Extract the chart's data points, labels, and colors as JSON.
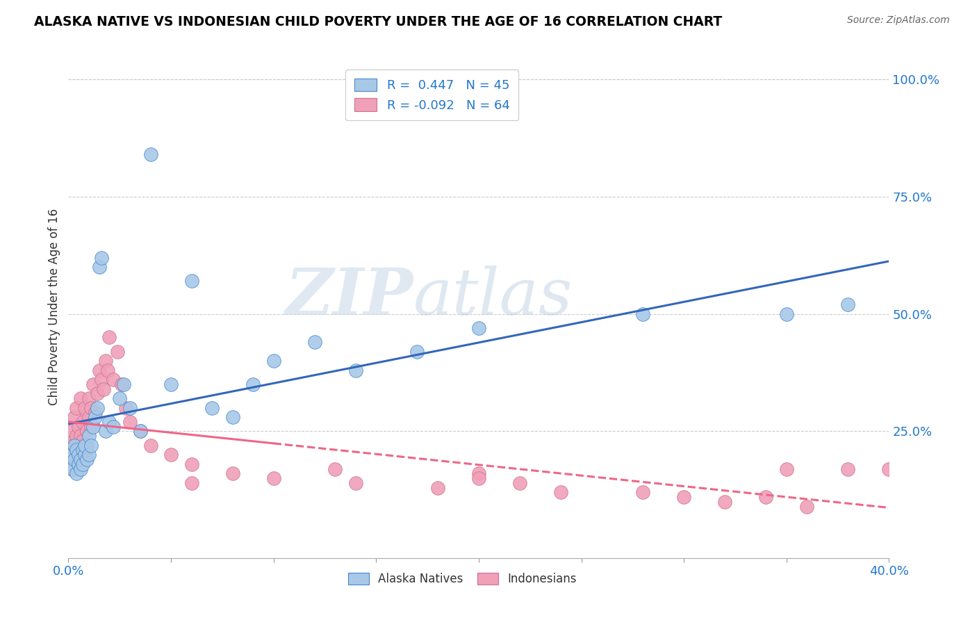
{
  "title": "ALASKA NATIVE VS INDONESIAN CHILD POVERTY UNDER THE AGE OF 16 CORRELATION CHART",
  "source": "Source: ZipAtlas.com",
  "ylabel": "Child Poverty Under the Age of 16",
  "xlim": [
    0.0,
    0.4
  ],
  "ylim": [
    -0.02,
    1.05
  ],
  "legend_r_blue": "R =  0.447",
  "legend_n_blue": "N = 45",
  "legend_r_pink": "R = -0.092",
  "legend_n_pink": "N = 64",
  "blue_fill": "#a8c8e8",
  "blue_edge": "#4488cc",
  "pink_fill": "#f0a0b8",
  "pink_edge": "#cc7090",
  "blue_line": "#3366bb",
  "pink_line": "#ee6688",
  "watermark_color": "#dde8f0",
  "alaska_x": [
    0.001,
    0.002,
    0.002,
    0.003,
    0.003,
    0.004,
    0.004,
    0.005,
    0.005,
    0.006,
    0.006,
    0.007,
    0.007,
    0.008,
    0.008,
    0.009,
    0.01,
    0.01,
    0.011,
    0.012,
    0.013,
    0.014,
    0.015,
    0.016,
    0.018,
    0.02,
    0.022,
    0.025,
    0.027,
    0.03,
    0.035,
    0.04,
    0.05,
    0.06,
    0.07,
    0.08,
    0.09,
    0.1,
    0.12,
    0.14,
    0.17,
    0.2,
    0.28,
    0.35,
    0.38
  ],
  "alaska_y": [
    0.18,
    0.17,
    0.2,
    0.19,
    0.22,
    0.16,
    0.21,
    0.18,
    0.2,
    0.17,
    0.19,
    0.21,
    0.18,
    0.2,
    0.22,
    0.19,
    0.2,
    0.24,
    0.22,
    0.26,
    0.28,
    0.3,
    0.6,
    0.62,
    0.25,
    0.27,
    0.26,
    0.32,
    0.35,
    0.3,
    0.25,
    0.84,
    0.35,
    0.57,
    0.3,
    0.28,
    0.35,
    0.4,
    0.44,
    0.38,
    0.42,
    0.47,
    0.5,
    0.5,
    0.52
  ],
  "indonesian_x": [
    0.001,
    0.001,
    0.002,
    0.002,
    0.002,
    0.003,
    0.003,
    0.003,
    0.004,
    0.004,
    0.004,
    0.005,
    0.005,
    0.005,
    0.006,
    0.006,
    0.006,
    0.007,
    0.007,
    0.007,
    0.008,
    0.008,
    0.009,
    0.009,
    0.01,
    0.01,
    0.011,
    0.011,
    0.012,
    0.013,
    0.014,
    0.015,
    0.016,
    0.017,
    0.018,
    0.019,
    0.02,
    0.022,
    0.024,
    0.026,
    0.028,
    0.03,
    0.035,
    0.04,
    0.05,
    0.06,
    0.08,
    0.1,
    0.14,
    0.18,
    0.2,
    0.22,
    0.24,
    0.28,
    0.3,
    0.32,
    0.34,
    0.36,
    0.38,
    0.4,
    0.06,
    0.13,
    0.2,
    0.35
  ],
  "indonesian_y": [
    0.18,
    0.2,
    0.17,
    0.22,
    0.25,
    0.19,
    0.23,
    0.28,
    0.2,
    0.24,
    0.3,
    0.18,
    0.22,
    0.26,
    0.2,
    0.24,
    0.32,
    0.19,
    0.23,
    0.27,
    0.21,
    0.3,
    0.22,
    0.25,
    0.28,
    0.32,
    0.26,
    0.3,
    0.35,
    0.29,
    0.33,
    0.38,
    0.36,
    0.34,
    0.4,
    0.38,
    0.45,
    0.36,
    0.42,
    0.35,
    0.3,
    0.27,
    0.25,
    0.22,
    0.2,
    0.18,
    0.16,
    0.15,
    0.14,
    0.13,
    0.16,
    0.14,
    0.12,
    0.12,
    0.11,
    0.1,
    0.11,
    0.09,
    0.17,
    0.17,
    0.14,
    0.17,
    0.15,
    0.17
  ]
}
